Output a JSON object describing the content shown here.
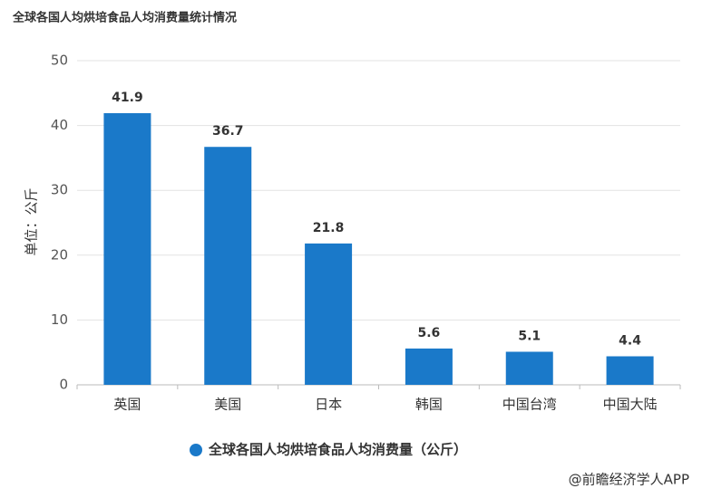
{
  "chart_data": {
    "type": "bar",
    "title": "全球各国人均烘培食品人均消费量统计情况",
    "y_label": "单位：公斤",
    "categories": [
      "英国",
      "美国",
      "日本",
      "韩国",
      "中国台湾",
      "中国大陆"
    ],
    "series": [
      {
        "name": "全球各国人均烘培食品人均消费量（公斤）",
        "color": "#1a79c9",
        "values": [
          41.9,
          36.7,
          21.8,
          5.6,
          5.1,
          4.4
        ]
      }
    ],
    "ylim": [
      0,
      50
    ],
    "yticks": [
      0,
      10,
      20,
      30,
      40,
      50
    ],
    "grid": true,
    "source": "@前瞻经济学人APP"
  }
}
